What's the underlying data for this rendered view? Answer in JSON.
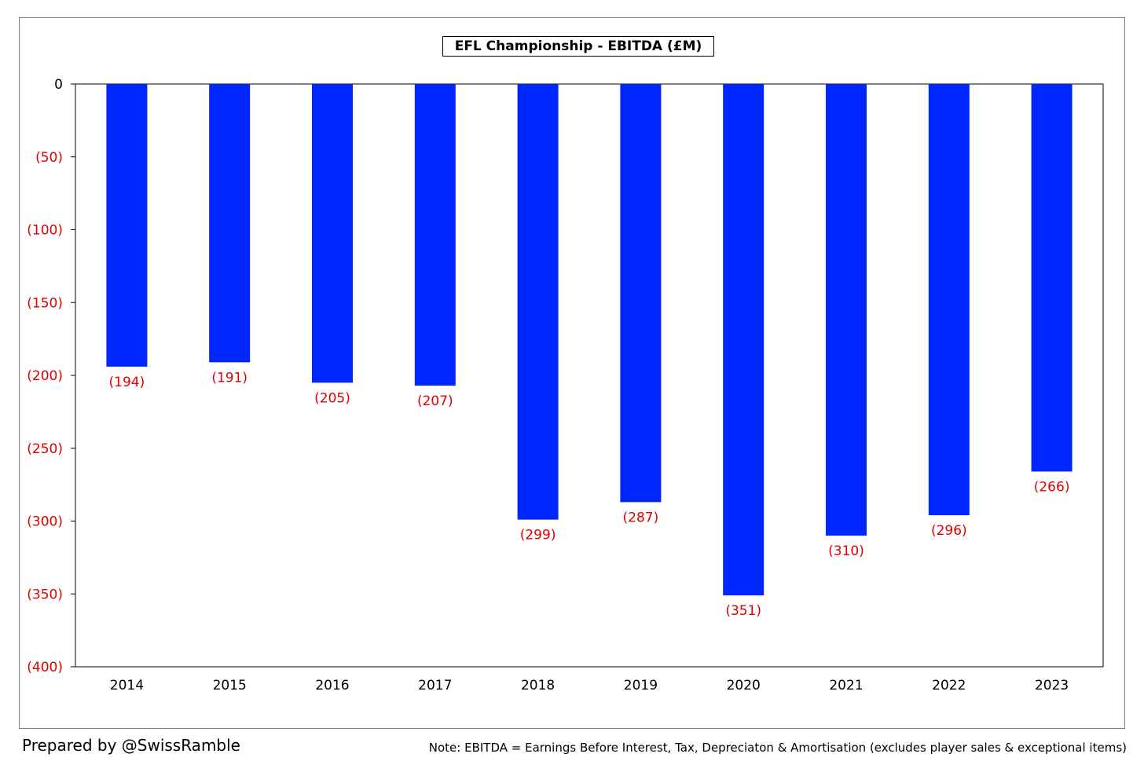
{
  "chart_data": {
    "type": "bar",
    "title": "EFL Championship - EBITDA (£M)",
    "xlabel": "",
    "ylabel": "",
    "categories": [
      "2014",
      "2015",
      "2016",
      "2017",
      "2018",
      "2019",
      "2020",
      "2021",
      "2022",
      "2023"
    ],
    "values": [
      -194,
      -191,
      -205,
      -207,
      -299,
      -287,
      -351,
      -310,
      -296,
      -266
    ],
    "data_labels": [
      "(194)",
      "(191)",
      "(205)",
      "(207)",
      "(299)",
      "(287)",
      "(351)",
      "(310)",
      "(296)",
      "(266)"
    ],
    "ylim": [
      -400,
      0
    ],
    "yticks": [
      0,
      -50,
      -100,
      -150,
      -200,
      -250,
      -300,
      -350,
      -400
    ],
    "ytick_labels": [
      "0",
      "(50)",
      "(100)",
      "(150)",
      "(200)",
      "(250)",
      "(300)",
      "(350)",
      "(400)"
    ],
    "grid": false,
    "legend": "none",
    "colors": {
      "bar": "#0026ff",
      "negative_label": "#e00000",
      "zero_label": "#000000",
      "axis": "#000000"
    }
  },
  "footer": {
    "credit": "Prepared by @SwissRamble",
    "note": "Note: EBITDA = Earnings Before Interest, Tax, Depreciaton & Amortisation (excludes player sales & exceptional items)"
  }
}
